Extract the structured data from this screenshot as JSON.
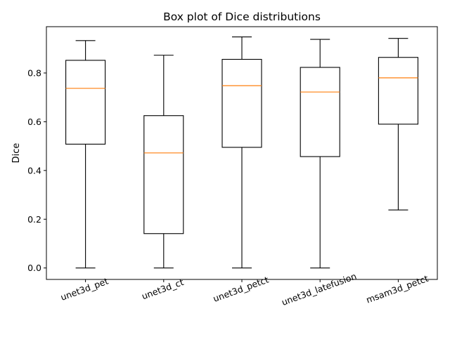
{
  "chart_data": {
    "type": "box",
    "title": "Box plot of Dice distributions",
    "xlabel": "",
    "ylabel": "Dice",
    "ylim": [
      -0.047,
      0.99
    ],
    "yticks": [
      0.0,
      0.2,
      0.4,
      0.6,
      0.8
    ],
    "ytick_labels": [
      "0.0",
      "0.2",
      "0.4",
      "0.6",
      "0.8"
    ],
    "grid": false,
    "median_color": "#ff7f0e",
    "box_color": "#000000",
    "categories": [
      "unet3d_pet",
      "unet3d_ct",
      "unet3d_petct",
      "unet3d_latefusion",
      "msam3d_petct"
    ],
    "boxes": [
      {
        "label": "unet3d_pet",
        "whisker_low": 0.0,
        "q1": 0.508,
        "median": 0.737,
        "q3": 0.852,
        "whisker_high": 0.933
      },
      {
        "label": "unet3d_ct",
        "whisker_low": 0.0,
        "q1": 0.141,
        "median": 0.472,
        "q3": 0.625,
        "whisker_high": 0.873
      },
      {
        "label": "unet3d_petct",
        "whisker_low": 0.0,
        "q1": 0.495,
        "median": 0.748,
        "q3": 0.856,
        "whisker_high": 0.948
      },
      {
        "label": "unet3d_latefusion",
        "whisker_low": 0.0,
        "q1": 0.457,
        "median": 0.722,
        "q3": 0.823,
        "whisker_high": 0.938
      },
      {
        "label": "msam3d_petct",
        "whisker_low": 0.238,
        "q1": 0.59,
        "median": 0.78,
        "q3": 0.864,
        "whisker_high": 0.942
      }
    ]
  }
}
